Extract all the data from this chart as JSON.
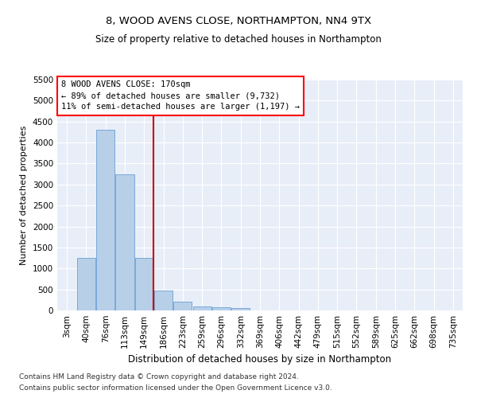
{
  "title": "8, WOOD AVENS CLOSE, NORTHAMPTON, NN4 9TX",
  "subtitle": "Size of property relative to detached houses in Northampton",
  "xlabel": "Distribution of detached houses by size in Northampton",
  "ylabel": "Number of detached properties",
  "annotation_line1": "8 WOOD AVENS CLOSE: 170sqm",
  "annotation_line2": "← 89% of detached houses are smaller (9,732)",
  "annotation_line3": "11% of semi-detached houses are larger (1,197) →",
  "footnote1": "Contains HM Land Registry data © Crown copyright and database right 2024.",
  "footnote2": "Contains public sector information licensed under the Open Government Licence v3.0.",
  "bar_color": "#b8cfe8",
  "bar_edge_color": "#6a9fd8",
  "red_line_color": "#cc0000",
  "background_color": "#e8eef8",
  "grid_color": "#ffffff",
  "categories": [
    "3sqm",
    "40sqm",
    "76sqm",
    "113sqm",
    "149sqm",
    "186sqm",
    "223sqm",
    "259sqm",
    "296sqm",
    "332sqm",
    "369sqm",
    "406sqm",
    "442sqm",
    "479sqm",
    "515sqm",
    "552sqm",
    "589sqm",
    "625sqm",
    "662sqm",
    "698sqm",
    "735sqm"
  ],
  "values": [
    0,
    1250,
    4300,
    3250,
    1250,
    480,
    200,
    100,
    70,
    50,
    0,
    0,
    0,
    0,
    0,
    0,
    0,
    0,
    0,
    0,
    0
  ],
  "ylim": [
    0,
    5500
  ],
  "yticks": [
    0,
    500,
    1000,
    1500,
    2000,
    2500,
    3000,
    3500,
    4000,
    4500,
    5000,
    5500
  ],
  "red_line_x": 4.5,
  "title_fontsize": 9.5,
  "subtitle_fontsize": 8.5,
  "xlabel_fontsize": 8.5,
  "ylabel_fontsize": 8,
  "tick_fontsize": 7.5,
  "annotation_fontsize": 7.5,
  "footnote_fontsize": 6.5
}
